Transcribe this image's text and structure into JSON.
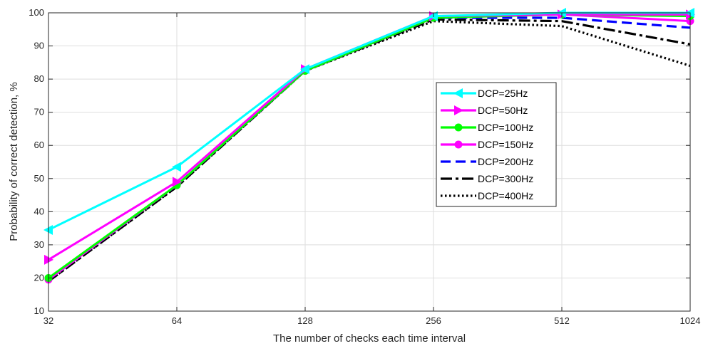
{
  "chart_data": {
    "type": "line",
    "xlabel": "The number of checks each time interval",
    "ylabel": "Probability of correct detection, %",
    "x": [
      32,
      64,
      128,
      256,
      512,
      1024
    ],
    "x_tick_labels": [
      "32",
      "64",
      "128",
      "256",
      "512",
      "1024"
    ],
    "x_scale": "log2",
    "ylim": [
      10,
      100
    ],
    "y_ticks": [
      10,
      20,
      30,
      40,
      50,
      60,
      70,
      80,
      90,
      100
    ],
    "grid": true,
    "legend_position": "right-center",
    "series": [
      {
        "name": "DCP=25Hz",
        "color": "#00ffff",
        "style": "solid",
        "marker": "triangle-left",
        "values": [
          34.5,
          53.5,
          83,
          99,
          100,
          100
        ]
      },
      {
        "name": "DCP=50Hz",
        "color": "#ff00ff",
        "style": "solid",
        "marker": "triangle-right",
        "values": [
          25.5,
          49,
          83,
          99,
          99.5,
          99.5
        ]
      },
      {
        "name": "DCP=100Hz",
        "color": "#00ff00",
        "style": "solid",
        "marker": "circle",
        "values": [
          20,
          48,
          82.5,
          98.5,
          99.5,
          99
        ]
      },
      {
        "name": "DCP=150Hz",
        "color": "#ff00ff",
        "style": "solid",
        "marker": "circle",
        "values": [
          19.5,
          48,
          82.5,
          98.5,
          99.5,
          97.5
        ]
      },
      {
        "name": "DCP=200Hz",
        "color": "#0000ff",
        "style": "dashed",
        "marker": "none",
        "values": [
          19.5,
          48,
          82.5,
          98.5,
          98.5,
          95.5
        ]
      },
      {
        "name": "DCP=300Hz",
        "color": "#000000",
        "style": "dashdot",
        "marker": "none",
        "values": [
          19,
          47.5,
          82.5,
          98,
          97.5,
          90.5
        ]
      },
      {
        "name": "DCP=400Hz",
        "color": "#000000",
        "style": "dotted",
        "marker": "none",
        "values": [
          19,
          47.5,
          82.5,
          97.5,
          96,
          84
        ]
      }
    ]
  }
}
